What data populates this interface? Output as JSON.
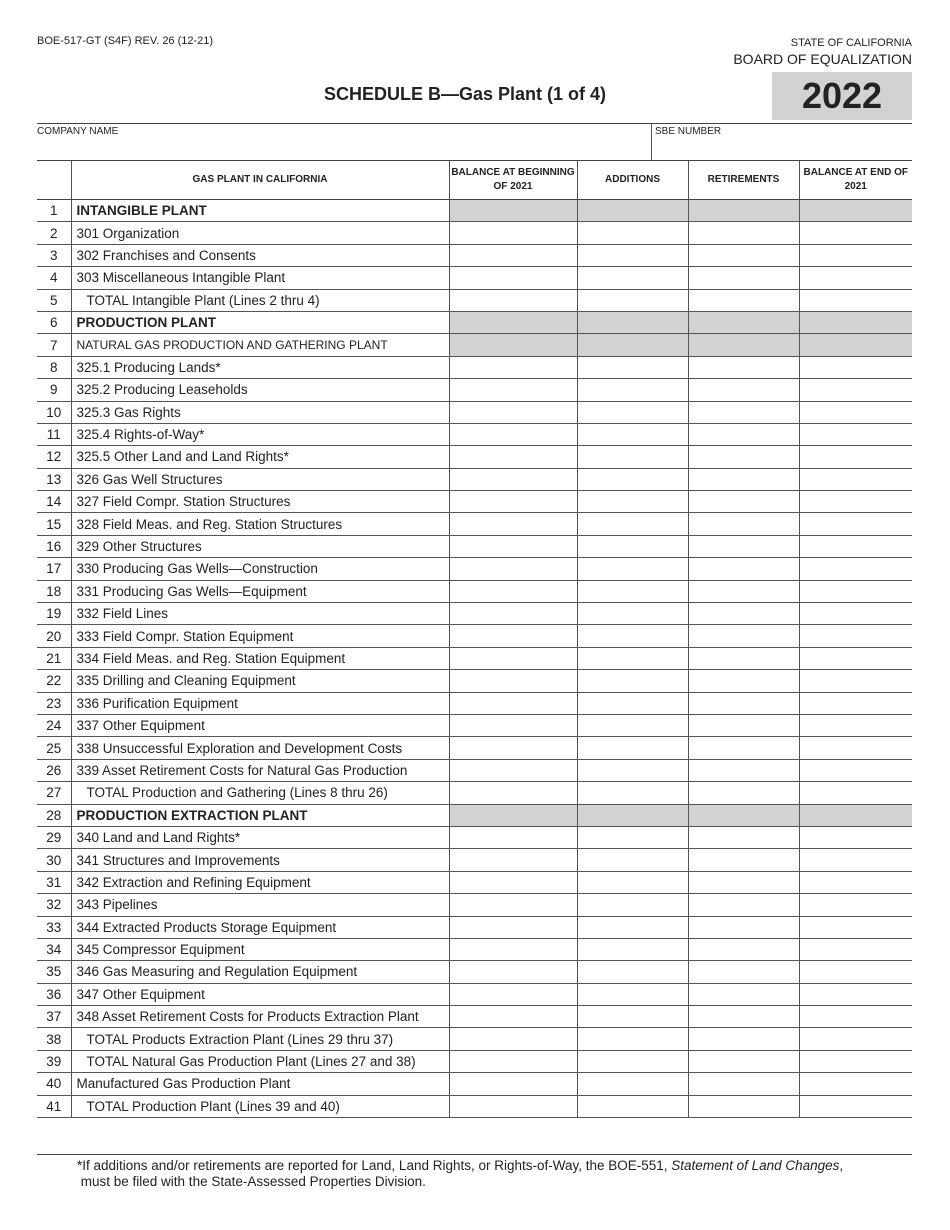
{
  "header": {
    "form_number": "BOE-517-GT (S4F) REV. 26 (12-21)",
    "state": "STATE OF CALIFORNIA",
    "board": "BOARD OF EQUALIZATION",
    "title": "SCHEDULE B—Gas Plant (1 of 4)",
    "year": "2022",
    "company_name_label": "COMPANY NAME",
    "company_name_value": "",
    "sbe_number_label": "SBE NUMBER",
    "sbe_number_value": ""
  },
  "table": {
    "columns": [
      "",
      "GAS PLANT IN CALIFORNIA",
      "BALANCE AT BEGINNING OF 2021",
      "ADDITIONS",
      "RETIREMENTS",
      "BALANCE AT END OF 2021"
    ],
    "rows": [
      {
        "n": "1",
        "label": "INTANGIBLE PLANT",
        "style": "bold",
        "gray": true
      },
      {
        "n": "2",
        "label": "301 Organization"
      },
      {
        "n": "3",
        "label": "302 Franchises and Consents"
      },
      {
        "n": "4",
        "label": "303 Miscellaneous Intangible Plant"
      },
      {
        "n": "5",
        "label": "TOTAL Intangible Plant (Lines 2 thru 4)",
        "style": "indent"
      },
      {
        "n": "6",
        "label": "PRODUCTION PLANT",
        "style": "bold",
        "gray": true
      },
      {
        "n": "7",
        "label": "NATURAL GAS PRODUCTION AND GATHERING PLANT",
        "style": "caps",
        "gray": true
      },
      {
        "n": "8",
        "label": "325.1 Producing Lands*"
      },
      {
        "n": "9",
        "label": "325.2 Producing Leaseholds"
      },
      {
        "n": "10",
        "label": "325.3 Gas Rights"
      },
      {
        "n": "11",
        "label": "325.4 Rights-of-Way*"
      },
      {
        "n": "12",
        "label": "325.5 Other Land and Land Rights*"
      },
      {
        "n": "13",
        "label": "326 Gas Well Structures"
      },
      {
        "n": "14",
        "label": "327 Field Compr. Station Structures"
      },
      {
        "n": "15",
        "label": "328 Field Meas. and Reg. Station Structures"
      },
      {
        "n": "16",
        "label": "329 Other Structures"
      },
      {
        "n": "17",
        "label": "330 Producing Gas Wells—Construction"
      },
      {
        "n": "18",
        "label": "331 Producing Gas Wells—Equipment"
      },
      {
        "n": "19",
        "label": "332 Field Lines"
      },
      {
        "n": "20",
        "label": "333 Field Compr. Station Equipment"
      },
      {
        "n": "21",
        "label": "334 Field Meas. and Reg. Station Equipment"
      },
      {
        "n": "22",
        "label": "335 Drilling and Cleaning Equipment"
      },
      {
        "n": "23",
        "label": "336 Purification Equipment"
      },
      {
        "n": "24",
        "label": "337 Other Equipment"
      },
      {
        "n": "25",
        "label": "338 Unsuccessful Exploration and Development Costs"
      },
      {
        "n": "26",
        "label": "339 Asset Retirement Costs for Natural Gas Production"
      },
      {
        "n": "27",
        "label": "TOTAL Production and Gathering (Lines 8 thru 26)",
        "style": "indent"
      },
      {
        "n": "28",
        "label": "PRODUCTION EXTRACTION PLANT",
        "style": "bold",
        "gray": true
      },
      {
        "n": "29",
        "label": "340 Land and Land Rights*"
      },
      {
        "n": "30",
        "label": "341 Structures and Improvements"
      },
      {
        "n": "31",
        "label": "342 Extraction and Refining Equipment"
      },
      {
        "n": "32",
        "label": "343 Pipelines"
      },
      {
        "n": "33",
        "label": "344 Extracted Products Storage Equipment"
      },
      {
        "n": "34",
        "label": "345 Compressor Equipment"
      },
      {
        "n": "35",
        "label": "346 Gas Measuring and Regulation Equipment"
      },
      {
        "n": "36",
        "label": "347 Other Equipment"
      },
      {
        "n": "37",
        "label": "348 Asset Retirement Costs for Products Extraction Plant"
      },
      {
        "n": "38",
        "label": "TOTAL Products Extraction Plant (Lines 29 thru 37)",
        "style": "indent"
      },
      {
        "n": "39",
        "label": "TOTAL Natural Gas Production Plant (Lines 27 and 38)",
        "style": "indent"
      },
      {
        "n": "40",
        "label": "Manufactured Gas Production Plant"
      },
      {
        "n": "41",
        "label": "TOTAL Production Plant (Lines 39 and 40)",
        "style": "indent"
      }
    ]
  },
  "footnote": {
    "text_before": "*If additions and/or retirements are reported for Land, Land Rights, or Rights-of-Way, the BOE-551, ",
    "italic": "Statement of Land Changes",
    "text_after": ",",
    "line2": "must be filed with the State-Assessed Properties Division."
  },
  "colors": {
    "shade": "#d1d2d4",
    "rule": "#444444"
  }
}
